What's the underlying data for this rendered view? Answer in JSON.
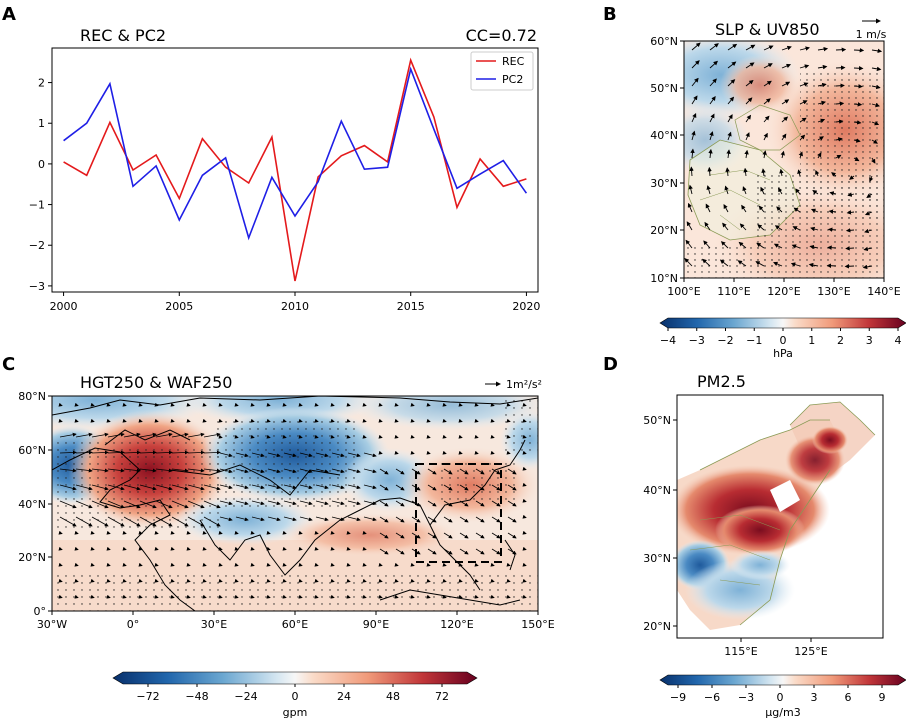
{
  "chart_data": [
    {
      "panel": "A",
      "type": "line",
      "title": "REC & PC2",
      "annotation": "CC=0.72",
      "x": [
        2000,
        2001,
        2002,
        2003,
        2004,
        2005,
        2006,
        2007,
        2008,
        2009,
        2010,
        2011,
        2012,
        2013,
        2014,
        2015,
        2016,
        2017,
        2018,
        2019,
        2020
      ],
      "series": [
        {
          "name": "REC",
          "color": "#e41a1c",
          "values": [
            0.05,
            -0.28,
            1.02,
            -0.15,
            0.22,
            -0.85,
            0.62,
            -0.08,
            -0.47,
            0.66,
            -2.88,
            -0.32,
            0.2,
            0.45,
            0.05,
            2.55,
            1.15,
            -1.07,
            0.12,
            -0.55,
            -0.37
          ]
        },
        {
          "name": "PC2",
          "color": "#1f1fe6",
          "values": [
            0.57,
            1.0,
            1.97,
            -0.55,
            -0.05,
            -1.38,
            -0.28,
            0.15,
            -1.82,
            -0.33,
            -1.28,
            -0.44,
            1.05,
            -0.13,
            -0.08,
            2.33,
            0.85,
            -0.6,
            -0.25,
            0.08,
            -0.72
          ]
        }
      ],
      "xticks": [
        "2000",
        "2005",
        "2010",
        "2015",
        "2020"
      ],
      "yticks": [
        "2",
        "1",
        "0",
        "−1",
        "−2",
        "−3"
      ],
      "xlim": [
        1999.5,
        2020.5
      ],
      "ylim": [
        -3.15,
        2.85
      ],
      "legend": "top-right"
    },
    {
      "panel": "B",
      "type": "heatmap",
      "title": "SLP & UV850",
      "vector_key": "1 m/s",
      "xticks": [
        "100°E",
        "110°E",
        "120°E",
        "130°E",
        "140°E"
      ],
      "yticks": [
        "60°N",
        "50°N",
        "40°N",
        "30°N",
        "20°N",
        "10°N"
      ],
      "colorbar_ticks": [
        "−4",
        "−3",
        "−2",
        "−1",
        "0",
        "1",
        "2",
        "3",
        "4"
      ],
      "colorbar_label": "hPa"
    },
    {
      "panel": "C",
      "type": "heatmap",
      "title": "HGT250 & WAF250",
      "vector_key": "1m²/s²",
      "xticks": [
        "30°W",
        "0°",
        "30°E",
        "60°E",
        "90°E",
        "120°E",
        "150°E"
      ],
      "yticks": [
        "80°N",
        "60°N",
        "40°N",
        "20°N",
        "0°"
      ],
      "colorbar_ticks": [
        "−72",
        "−48",
        "−24",
        "0",
        "24",
        "48",
        "72"
      ],
      "colorbar_label": "gpm"
    },
    {
      "panel": "D",
      "type": "heatmap",
      "title": "PM2.5",
      "xticks": [
        "115°E",
        "125°E"
      ],
      "yticks": [
        "50°N",
        "40°N",
        "30°N",
        "20°N"
      ],
      "colorbar_ticks": [
        "−9",
        "−6",
        "−3",
        "0",
        "3",
        "6",
        "9"
      ],
      "colorbar_label": "μg/m3"
    }
  ],
  "panel_labels": [
    "A",
    "B",
    "C",
    "D"
  ],
  "colors": {
    "red": "#b2182b",
    "blue": "#2166ac",
    "white": "#f7f7f7"
  }
}
